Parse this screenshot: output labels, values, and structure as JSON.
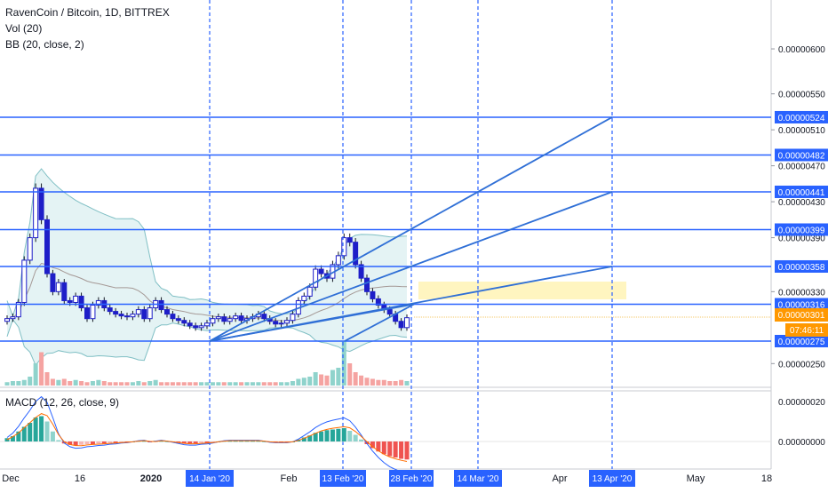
{
  "legend": {
    "symbol": "RavenCoin / Bitcoin, 1D, BITTREX",
    "vol": "Vol (20)",
    "bb": "BB (20, close, 2)",
    "macd": "MACD (12, 26, close, 9)"
  },
  "colors": {
    "up": "#26a69a",
    "down": "#ef5350",
    "candle_body": "#1e1ec8",
    "hline": "#2962ff",
    "fan": "#2f6fd6",
    "bb_fill": "#d9eef0",
    "bb_line": "#7fbfc4",
    "macd_line": "#2962ff",
    "signal_line": "#ff6d00",
    "highlight": "#fff3b0"
  },
  "chart_data": {
    "type": "candlestick",
    "x_ticks": [
      "Dec",
      "16",
      "2020",
      "Feb",
      "Apr",
      "May",
      "18"
    ],
    "x_date_badges": [
      "14 Jan '20",
      "13 Feb '20",
      "28 Feb '20",
      "14 Mar '20",
      "13 Apr '20"
    ],
    "y_ticks": [
      "0.00000600",
      "0.00000550",
      "0.00000510",
      "0.00000470",
      "0.00000430",
      "0.00000390",
      "0.00000330",
      "0.00000250"
    ],
    "y_range": [
      2.3e-06,
      6.5e-06
    ],
    "horizontal_levels": [
      5.24e-06,
      4.82e-06,
      4.41e-06,
      3.99e-06,
      3.58e-06,
      3.16e-06,
      2.75e-06
    ],
    "level_labels": [
      "0.00000524",
      "0.00000482",
      "0.00000441",
      "0.00000399",
      "0.00000358",
      "0.00000316",
      "0.00000275"
    ],
    "last_price": "0.00000301",
    "countdown": "07:46:11",
    "fan_origin": {
      "date": "14 Jan '20",
      "price": 2.75e-06
    },
    "fan_targets": [
      {
        "date": "13 Apr '20",
        "price": 5.24e-06
      },
      {
        "date": "13 Apr '20",
        "price": 4.41e-06
      },
      {
        "date": "13 Apr '20",
        "price": 3.58e-06
      }
    ],
    "closes": [
      3e-06,
      3.02e-06,
      3.18e-06,
      3.65e-06,
      3.9e-06,
      4.45e-06,
      4.1e-06,
      3.5e-06,
      3.3e-06,
      3.4e-06,
      3.2e-06,
      3.18e-06,
      3.25e-06,
      3.12e-06,
      3e-06,
      3.15e-06,
      3.2e-06,
      3.12e-06,
      3.08e-06,
      3.05e-06,
      3.03e-06,
      3.02e-06,
      3.05e-06,
      3.1e-06,
      3e-06,
      3.12e-06,
      3.2e-06,
      3.1e-06,
      3.05e-06,
      3e-06,
      2.98e-06,
      2.95e-06,
      2.92e-06,
      2.9e-06,
      2.92e-06,
      2.95e-06,
      3e-06,
      3.02e-06,
      2.97e-06,
      3e-06,
      3.03e-06,
      2.98e-06,
      3e-06,
      3.02e-06,
      3.05e-06,
      3e-06,
      2.97e-06,
      2.94e-06,
      2.95e-06,
      2.98e-06,
      3.05e-06,
      3.2e-06,
      3.25e-06,
      3.35e-06,
      3.55e-06,
      3.5e-06,
      3.45e-06,
      3.6e-06,
      3.7e-06,
      3.9e-06,
      3.85e-06,
      3.6e-06,
      3.45e-06,
      3.3e-06,
      3.22e-06,
      3.15e-06,
      3.1e-06,
      3.05e-06,
      2.97e-06,
      2.9e-06,
      3.01e-06
    ],
    "volume": [
      3,
      4,
      4,
      5,
      8,
      20,
      30,
      12,
      6,
      5,
      6,
      4,
      5,
      4,
      3,
      4,
      5,
      4,
      3,
      3,
      3,
      3,
      3,
      4,
      3,
      4,
      5,
      3,
      3,
      3,
      3,
      3,
      3,
      3,
      3,
      3,
      3,
      3,
      3,
      3,
      3,
      3,
      3,
      3,
      3,
      3,
      3,
      3,
      3,
      3,
      4,
      6,
      7,
      8,
      12,
      10,
      9,
      14,
      16,
      40,
      20,
      12,
      9,
      7,
      6,
      5,
      5,
      4,
      4,
      5,
      4
    ],
    "macd_hist": [
      0.5,
      0.8,
      1.5,
      2.2,
      2.8,
      3.6,
      3.8,
      3.0,
      1.5,
      0.2,
      -0.3,
      -0.5,
      -0.6,
      -0.5,
      -0.4,
      -0.4,
      -0.3,
      -0.3,
      -0.2,
      -0.2,
      -0.1,
      -0.1,
      0.0,
      0.1,
      0.1,
      -0.1,
      0.1,
      0.1,
      0.0,
      -0.1,
      -0.2,
      -0.3,
      -0.3,
      -0.3,
      -0.2,
      -0.2,
      -0.1,
      0.0,
      0.1,
      0.1,
      0.1,
      0.1,
      0.1,
      0.1,
      0.1,
      0.0,
      -0.1,
      -0.1,
      -0.1,
      -0.1,
      0.0,
      0.3,
      0.6,
      0.9,
      1.3,
      1.5,
      1.7,
      1.8,
      1.9,
      2.0,
      1.6,
      1.0,
      0.3,
      -0.4,
      -1.0,
      -1.5,
      -1.9,
      -2.2,
      -2.4,
      -2.6,
      -2.7
    ],
    "macd_y_ticks": [
      "0.00000020",
      "0.00000000"
    ]
  }
}
